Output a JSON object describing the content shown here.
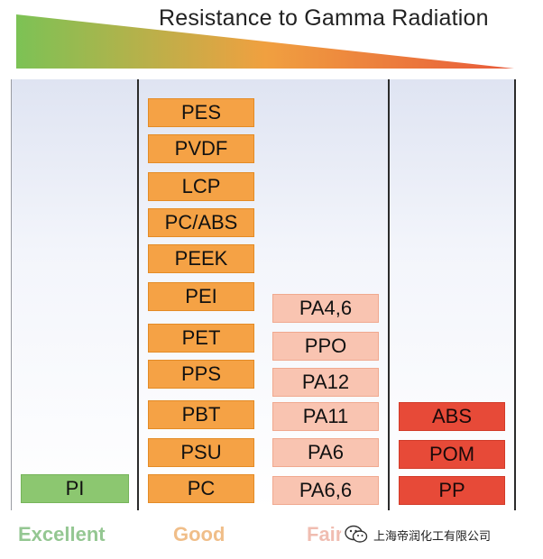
{
  "title": "Resistance to Gamma Radiation",
  "colors": {
    "gradient_start": "#7cc255",
    "gradient_mid": "#f0a040",
    "gradient_end": "#e85a3a",
    "good": "#f5a245",
    "fair": "#f9c4b1",
    "poor": "#e74a38",
    "excellent": "#8cc770"
  },
  "categories": {
    "excellent": "Excellent",
    "good": "Good",
    "fair": "Fair"
  },
  "columns": {
    "excellent": [
      "PI"
    ],
    "good": [
      "PES",
      "PVDF",
      "LCP",
      "PC/ABS",
      "PEEK",
      "PEI",
      "PET",
      "PPS",
      "PBT",
      "PSU",
      "PC"
    ],
    "fair": [
      "PA4,6",
      "PPO",
      "PA12",
      "PA11",
      "PA6",
      "PA6,6"
    ],
    "poor": [
      "ABS",
      "POM",
      "PP"
    ]
  },
  "watermark": {
    "text": "上海帝润化工有限公司",
    "icon": "wechat-icon"
  }
}
